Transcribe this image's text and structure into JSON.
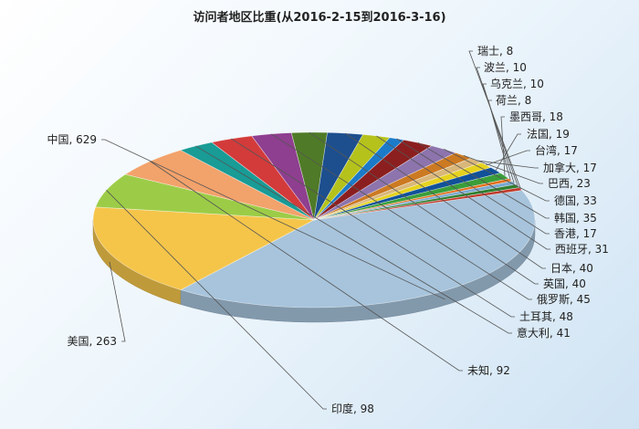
{
  "chart_data": {
    "type": "pie",
    "title": "访问者地区比重(从2016-2-15到2016-3-16)",
    "unit": "visitors",
    "slices": [
      {
        "name": "中国",
        "value": 629,
        "color": "#a7c4dc"
      },
      {
        "name": "美国",
        "value": 263,
        "color": "#f5c54a"
      },
      {
        "name": "印度",
        "value": 98,
        "color": "#9ccc47"
      },
      {
        "name": "未知",
        "value": 92,
        "color": "#f2a26b"
      },
      {
        "name": "意大利",
        "value": 41,
        "color": "#199b96"
      },
      {
        "name": "土耳其",
        "value": 48,
        "color": "#d33b3b"
      },
      {
        "name": "俄罗斯",
        "value": 45,
        "color": "#8e3f8f"
      },
      {
        "name": "英国",
        "value": 40,
        "color": "#4f7a27"
      },
      {
        "name": "日本",
        "value": 40,
        "color": "#1d4f8e"
      },
      {
        "name": "西班牙",
        "value": 31,
        "color": "#b5c21c"
      },
      {
        "name": "香港",
        "value": 17,
        "color": "#1c7bc9"
      },
      {
        "name": "韩国",
        "value": 35,
        "color": "#8b1f1f"
      },
      {
        "name": "德国",
        "value": 33,
        "color": "#8d74ad"
      },
      {
        "name": "巴西",
        "value": 23,
        "color": "#cc7a22"
      },
      {
        "name": "加拿大",
        "value": 17,
        "color": "#d9b77a"
      },
      {
        "name": "台湾",
        "value": 17,
        "color": "#e6d21e"
      },
      {
        "name": "法国",
        "value": 19,
        "color": "#115199"
      },
      {
        "name": "墨西哥",
        "value": 18,
        "color": "#3a9e3a"
      },
      {
        "name": "荷兰",
        "value": 8,
        "color": "#e36f1d"
      },
      {
        "name": "乌克兰",
        "value": 10,
        "color": "#7aa9d1"
      },
      {
        "name": "波兰",
        "value": 10,
        "color": "#2f7f2f"
      },
      {
        "name": "瑞士",
        "value": 8,
        "color": "#c0392b"
      }
    ]
  }
}
